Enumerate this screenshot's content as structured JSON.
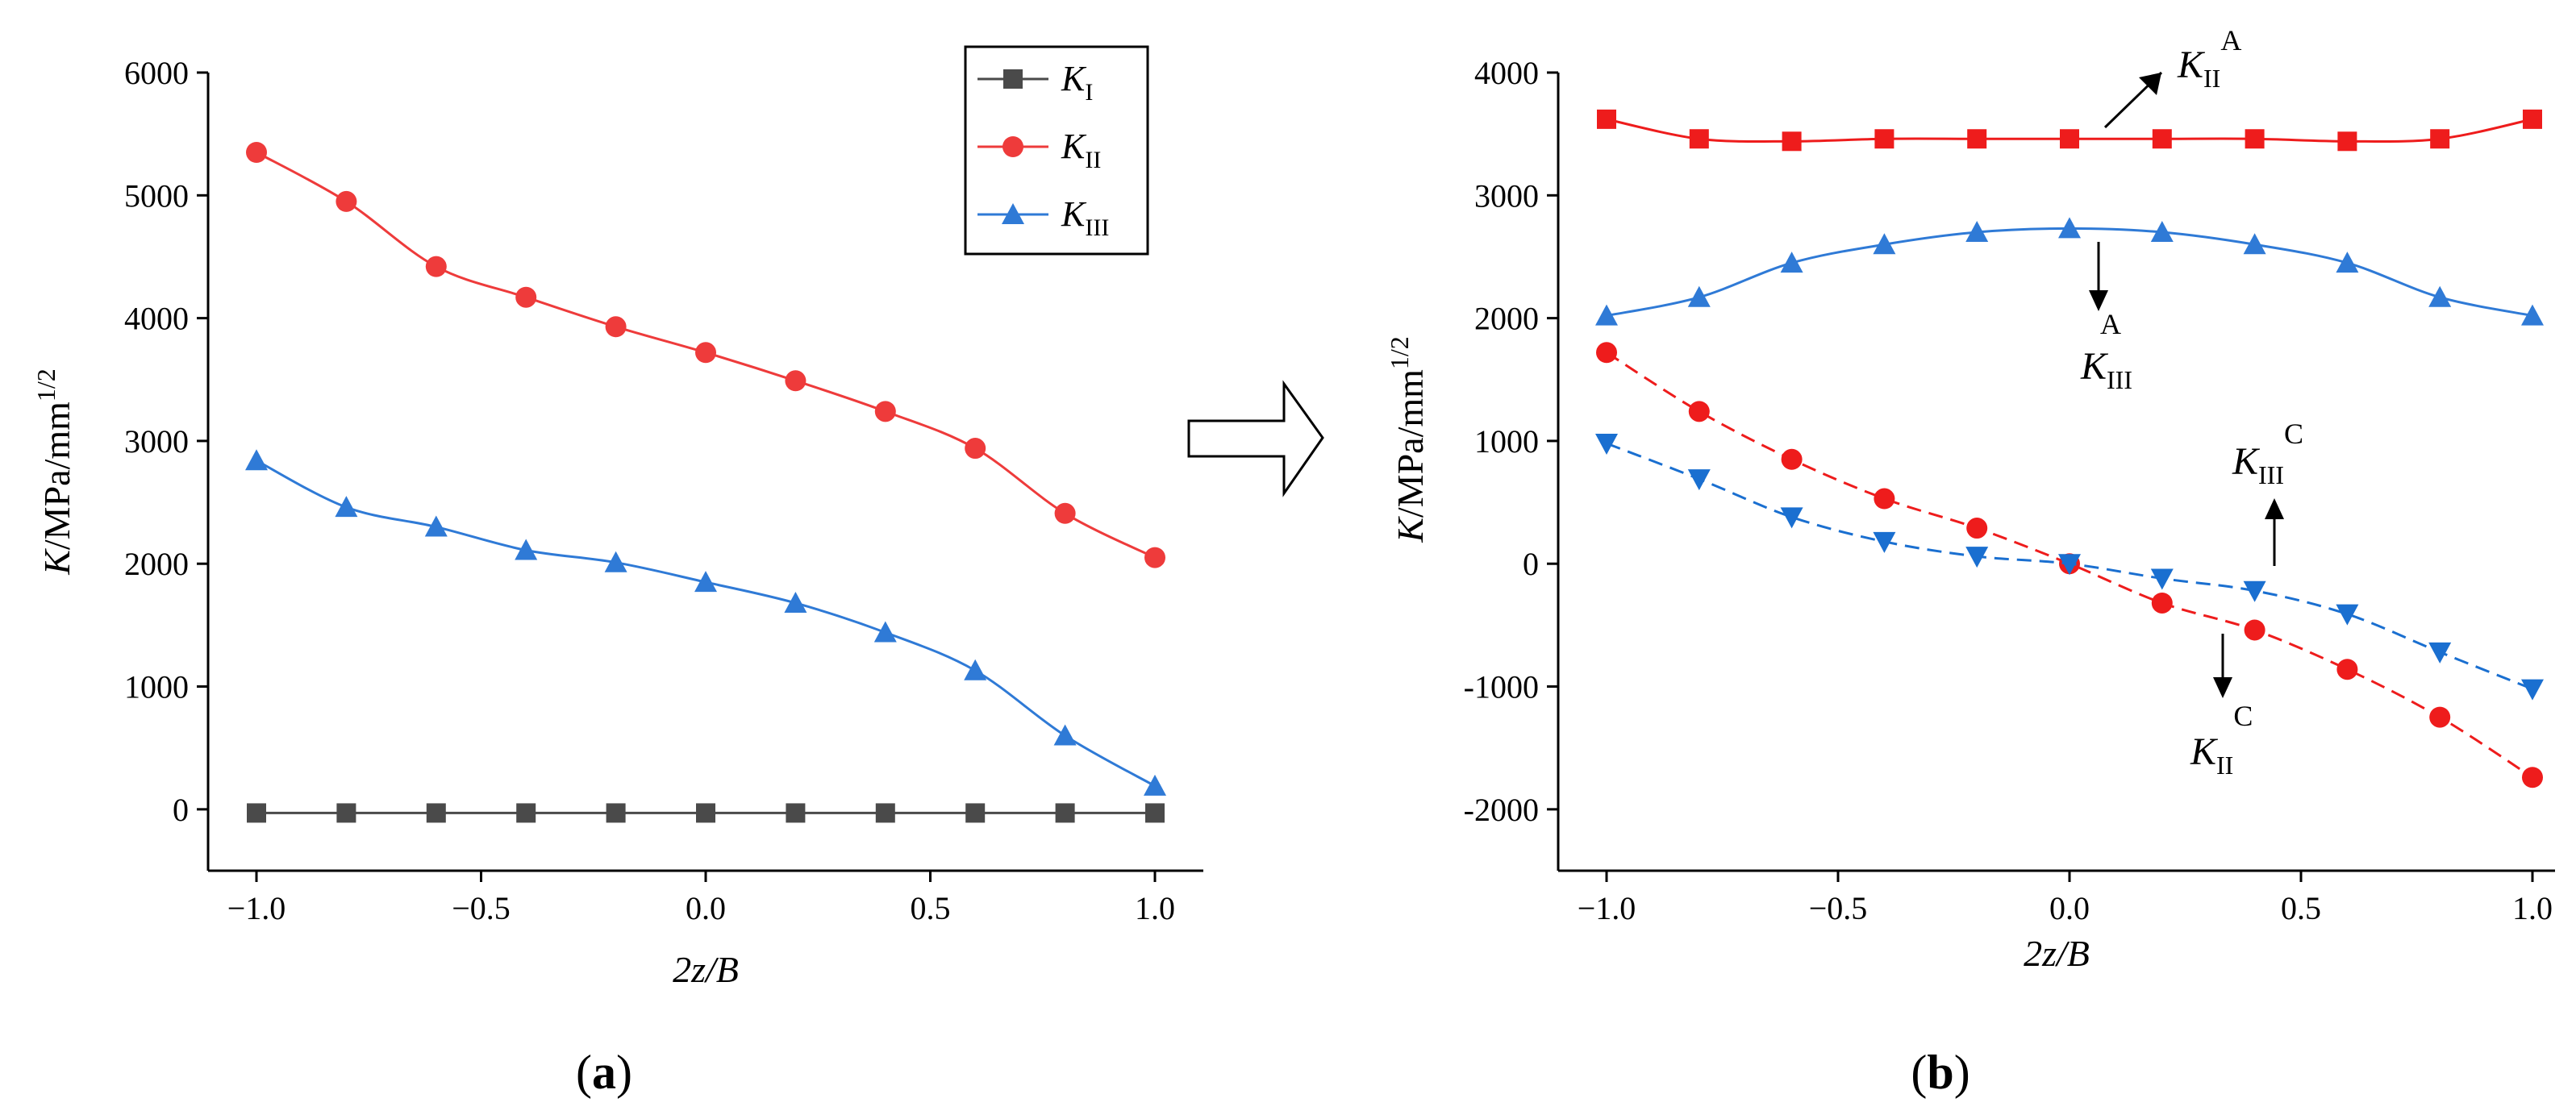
{
  "chart_data": [
    {
      "type": "line",
      "panel_label": "(a)",
      "panel_letter": "a",
      "xlabel": "2z/B",
      "ylabel": "K/MPa/mm^1/2",
      "xlim": [
        -1.0,
        1.0
      ],
      "ylim": [
        -500,
        6000
      ],
      "x_ticks": [
        -1.0,
        -0.5,
        0.0,
        0.5,
        1.0
      ],
      "x_tick_labels": [
        "−1.0",
        "−0.5",
        "0.0",
        "0.5",
        "1.0"
      ],
      "y_ticks": [
        0,
        1000,
        2000,
        3000,
        4000,
        5000,
        6000
      ],
      "y_tick_labels": [
        "0",
        "1000",
        "2000",
        "3000",
        "4000",
        "5000",
        "6000"
      ],
      "x": [
        -1.0,
        -0.8,
        -0.6,
        -0.4,
        -0.2,
        0.0,
        0.2,
        0.4,
        0.6,
        0.8,
        1.0
      ],
      "legend_position": "top-right",
      "series": [
        {
          "name": "KI",
          "symbol": "K",
          "sub": "I",
          "color": "#4a4a4a",
          "marker": "square",
          "dash": "solid",
          "values": [
            -30,
            -30,
            -30,
            -30,
            -30,
            -30,
            -30,
            -30,
            -30,
            -30,
            -30
          ]
        },
        {
          "name": "KII",
          "symbol": "K",
          "sub": "II",
          "color": "#ee3b3b",
          "marker": "circle",
          "dash": "solid",
          "values": [
            5350,
            4950,
            4420,
            4170,
            3930,
            3720,
            3490,
            3240,
            2940,
            2410,
            2050
          ]
        },
        {
          "name": "KIII",
          "symbol": "K",
          "sub": "III",
          "color": "#2f7ad6",
          "marker": "triangle-up",
          "dash": "solid",
          "values": [
            2840,
            2460,
            2300,
            2110,
            2010,
            1850,
            1680,
            1440,
            1130,
            600,
            190
          ]
        }
      ]
    },
    {
      "type": "line",
      "panel_label": "(b)",
      "panel_letter": "b",
      "xlabel": "2z/B",
      "ylabel": "K/MPa/mm^1/2",
      "xlim": [
        -1.0,
        1.0
      ],
      "ylim": [
        -2500,
        4000
      ],
      "x_ticks": [
        -1.0,
        -0.5,
        0.0,
        0.5,
        1.0
      ],
      "x_tick_labels": [
        "−1.0",
        "−0.5",
        "0.0",
        "0.5",
        "1.0"
      ],
      "y_ticks": [
        -2000,
        -1000,
        0,
        1000,
        2000,
        3000,
        4000
      ],
      "y_tick_labels": [
        "-2000",
        "-1000",
        "0",
        "1000",
        "2000",
        "3000",
        "4000"
      ],
      "x": [
        -1.0,
        -0.8,
        -0.6,
        -0.4,
        -0.2,
        0.0,
        0.2,
        0.4,
        0.6,
        0.8,
        1.0
      ],
      "series": [
        {
          "name": "KII A",
          "color": "#ee1c1c",
          "marker": "square",
          "dash": "solid",
          "values": [
            3620,
            3460,
            3440,
            3460,
            3460,
            3460,
            3460,
            3460,
            3440,
            3460,
            3620
          ]
        },
        {
          "name": "KIII A",
          "color": "#2f7ad6",
          "marker": "triangle-up",
          "dash": "solid",
          "values": [
            2020,
            2170,
            2450,
            2600,
            2700,
            2730,
            2700,
            2600,
            2450,
            2170,
            2020
          ]
        },
        {
          "name": "KII C",
          "color": "#ee1c1c",
          "marker": "circle",
          "dash": "dashed",
          "values": [
            1720,
            1240,
            850,
            530,
            290,
            0,
            -320,
            -540,
            -860,
            -1250,
            -1740
          ]
        },
        {
          "name": "KIII C",
          "color": "#1a6fd0",
          "marker": "triangle-down",
          "dash": "dashed",
          "values": [
            980,
            690,
            380,
            180,
            60,
            0,
            -120,
            -220,
            -410,
            -720,
            -1020
          ]
        }
      ],
      "annotations": [
        {
          "symbol": "K",
          "sub": "II",
          "sup": "A",
          "arrow": "up-right"
        },
        {
          "symbol": "K",
          "sub": "III",
          "sup": "A",
          "arrow": "down"
        },
        {
          "symbol": "K",
          "sub": "III",
          "sup": "C",
          "arrow": "up"
        },
        {
          "symbol": "K",
          "sub": "II",
          "sup": "C",
          "arrow": "down"
        }
      ]
    }
  ]
}
